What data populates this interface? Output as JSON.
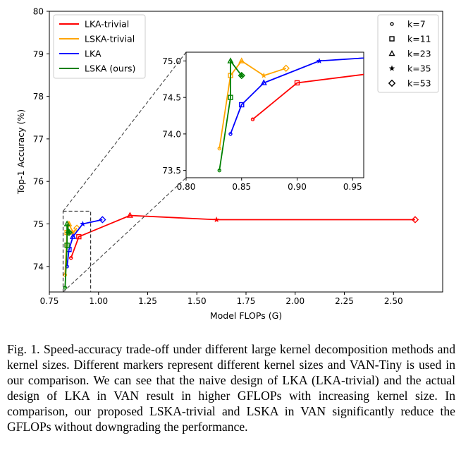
{
  "chart_data": {
    "type": "line",
    "xlabel": "Model FLOPs (G)",
    "ylabel": "Top-1 Accuracy (%)",
    "xlim": [
      0.75,
      2.75
    ],
    "ylim": [
      73.4,
      80
    ],
    "x_ticks": [
      "0.75",
      "1.00",
      "1.25",
      "1.50",
      "1.75",
      "2.00",
      "2.25",
      "2.50"
    ],
    "y_ticks": [
      "74",
      "75",
      "76",
      "77",
      "78",
      "79",
      "80"
    ],
    "grid": false,
    "series": [
      {
        "name": "LKA-trivial",
        "color": "#ff0000",
        "points": [
          [
            0.86,
            74.2
          ],
          [
            0.9,
            74.7
          ],
          [
            1.16,
            75.2
          ],
          [
            1.6,
            75.1
          ],
          [
            2.61,
            75.1
          ]
        ]
      },
      {
        "name": "LSKA-trivial",
        "color": "#ffa500",
        "points": [
          [
            0.83,
            73.8
          ],
          [
            0.84,
            74.8
          ],
          [
            0.85,
            75.0
          ],
          [
            0.87,
            74.8
          ],
          [
            0.89,
            74.9
          ]
        ]
      },
      {
        "name": "LKA",
        "color": "#0000ff",
        "points": [
          [
            0.84,
            74.0
          ],
          [
            0.85,
            74.4
          ],
          [
            0.87,
            74.7
          ],
          [
            0.92,
            75.0
          ],
          [
            1.02,
            75.1
          ]
        ]
      },
      {
        "name": "LSKA (ours)",
        "color": "#008000",
        "points": [
          [
            0.83,
            73.5
          ],
          [
            0.84,
            74.5
          ],
          [
            0.84,
            75.0
          ],
          [
            0.85,
            74.8
          ],
          [
            0.85,
            74.8
          ]
        ]
      }
    ],
    "markers": [
      {
        "label": "k=7",
        "shape": "circle"
      },
      {
        "label": "k=11",
        "shape": "square"
      },
      {
        "label": "k=23",
        "shape": "triangle"
      },
      {
        "label": "k=35",
        "shape": "star"
      },
      {
        "label": "k=53",
        "shape": "diamond"
      }
    ],
    "legend_position": "top-left",
    "marker_legend_position": "top-right",
    "inset": {
      "xlim": [
        0.8,
        0.96
      ],
      "ylim": [
        73.4,
        75.12
      ],
      "x_ticks": [
        "0.80",
        "0.85",
        "0.90",
        "0.95"
      ],
      "y_ticks": [
        "73.5",
        "74.0",
        "74.5",
        "75.0"
      ],
      "zoom_region": {
        "xlim": [
          0.82,
          0.96
        ],
        "ylim": [
          73.4,
          75.3
        ]
      }
    }
  },
  "caption": "Fig. 1.  Speed-accuracy trade-off under different large kernel decomposition methods and kernel sizes. Different markers represent different kernel sizes and VAN-Tiny is used in our comparison. We can see that the naive design of LKA (LKA-trivial) and the actual design of LKA in VAN result in higher GFLOPs with increasing kernel size. In comparison, our proposed LSKA-trivial and LSKA in VAN significantly reduce the GFLOPs without downgrading the performance."
}
